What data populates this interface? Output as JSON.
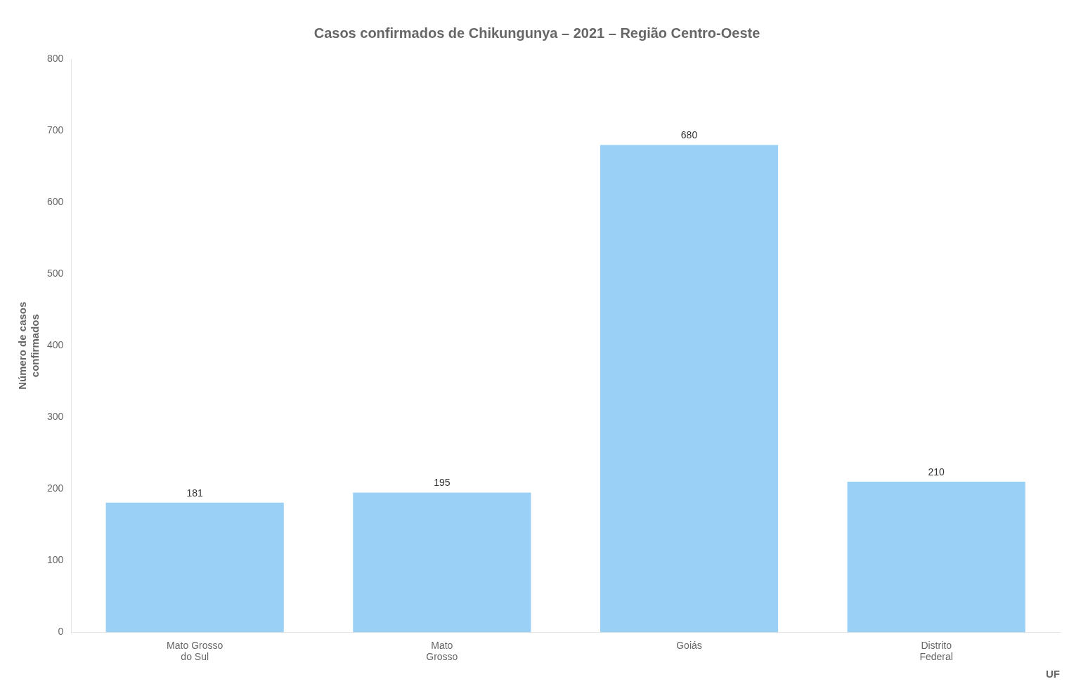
{
  "chart_data": {
    "type": "bar",
    "title": "Casos confirmados de Chikungunya – 2021 – Região Centro-Oeste",
    "categories": [
      "Mato Grosso\ndo Sul",
      "Mato\nGrosso",
      "Goiás",
      "Distrito\nFederal"
    ],
    "values": [
      181,
      195,
      680,
      210
    ],
    "xlabel": "UF",
    "ylabel": "Número de casos\nconfirmados",
    "ylim": [
      0,
      800
    ],
    "yticks": [
      0,
      100,
      200,
      300,
      400,
      500,
      600,
      700,
      800
    ],
    "grid": false,
    "data_labels": true
  }
}
